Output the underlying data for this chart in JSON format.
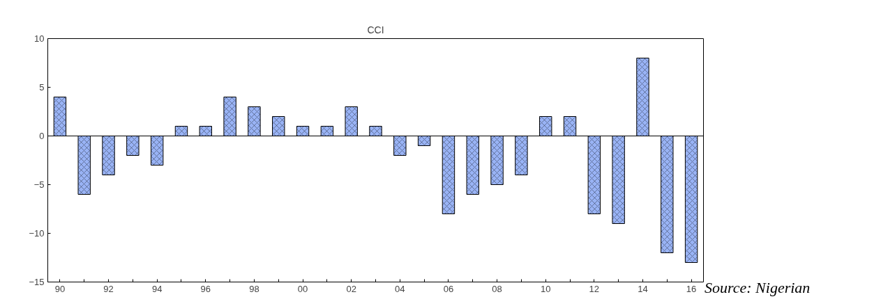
{
  "chart_data": {
    "type": "bar",
    "title": "CCI",
    "categories": [
      "90",
      null,
      "92",
      null,
      "94",
      null,
      "96",
      null,
      "98",
      null,
      "00",
      null,
      "02",
      null,
      "04",
      null,
      "06",
      null,
      "08",
      null,
      "10",
      null,
      "12",
      null,
      "14",
      null,
      "16"
    ],
    "values": [
      4,
      -6,
      -4,
      -2,
      -3,
      1,
      1,
      4,
      3,
      2,
      1,
      1,
      3,
      1,
      -2,
      -1,
      -8,
      -6,
      -5,
      -4,
      2,
      2,
      -8,
      -9,
      8,
      -12,
      -13
    ],
    "color": "#99b3f5",
    "ylim": [
      -15,
      10
    ],
    "yticks": [
      -15,
      -10,
      -5,
      0,
      5,
      10
    ],
    "ref_lines": [
      {
        "axis": "y",
        "value": 0,
        "color": "#000000"
      }
    ],
    "annotations": [
      "Source: Nigerian"
    ],
    "grid": false
  }
}
